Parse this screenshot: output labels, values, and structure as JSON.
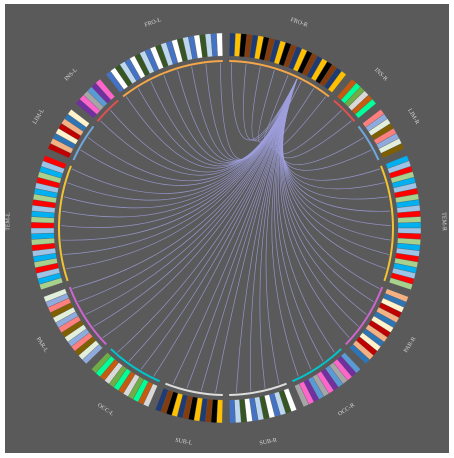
{
  "diagram": {
    "background": "#5a5a5a",
    "link_color": "#9f9fdd",
    "lobes": [
      {
        "label": "FRO-R",
        "accent": "#f3a64a",
        "count": 22
      },
      {
        "label": "INS-R",
        "accent": "#e05050",
        "count": 6
      },
      {
        "label": "LIM-R",
        "accent": "#6fa8dc",
        "count": 8
      },
      {
        "label": "TEM-R",
        "accent": "#f1c232",
        "count": 24
      },
      {
        "label": "PAR-R",
        "accent": "#cc66cc",
        "count": 14
      },
      {
        "label": "OCC-R",
        "accent": "#00c5cd",
        "count": 12
      },
      {
        "label": "SUB-R",
        "accent": "#dddddd",
        "count": 12
      },
      {
        "label": "SUB-L",
        "accent": "#dddddd",
        "count": 12
      },
      {
        "label": "OCC-L",
        "accent": "#00c5cd",
        "count": 12
      },
      {
        "label": "PAR-L",
        "accent": "#cc66cc",
        "count": 14
      },
      {
        "label": "TEM-L",
        "accent": "#f1c232",
        "count": 24
      },
      {
        "label": "LIM-L",
        "accent": "#6fa8dc",
        "count": 8
      },
      {
        "label": "INS-L",
        "accent": "#e05050",
        "count": 6
      },
      {
        "label": "FRO-L",
        "accent": "#f3a64a",
        "count": 22
      }
    ],
    "palette": [
      "#1f3b73",
      "#5b9bd5",
      "#a9d18e",
      "#70ad47",
      "#ffffff",
      "#c00000",
      "#ff7f7f",
      "#ffc000",
      "#7030a0",
      "#00b0f0",
      "#d9d9d9",
      "#375623",
      "#f4b183",
      "#8faadc",
      "#000000",
      "#ff66cc",
      "#9dc3e6",
      "#c55a11",
      "#bdd7ee",
      "#2e75b6",
      "#e2efda",
      "#843c0c",
      "#a6a6a6",
      "#ff0000",
      "#00ff99",
      "#4472c4",
      "#fff2cc",
      "#7f6000"
    ]
  }
}
